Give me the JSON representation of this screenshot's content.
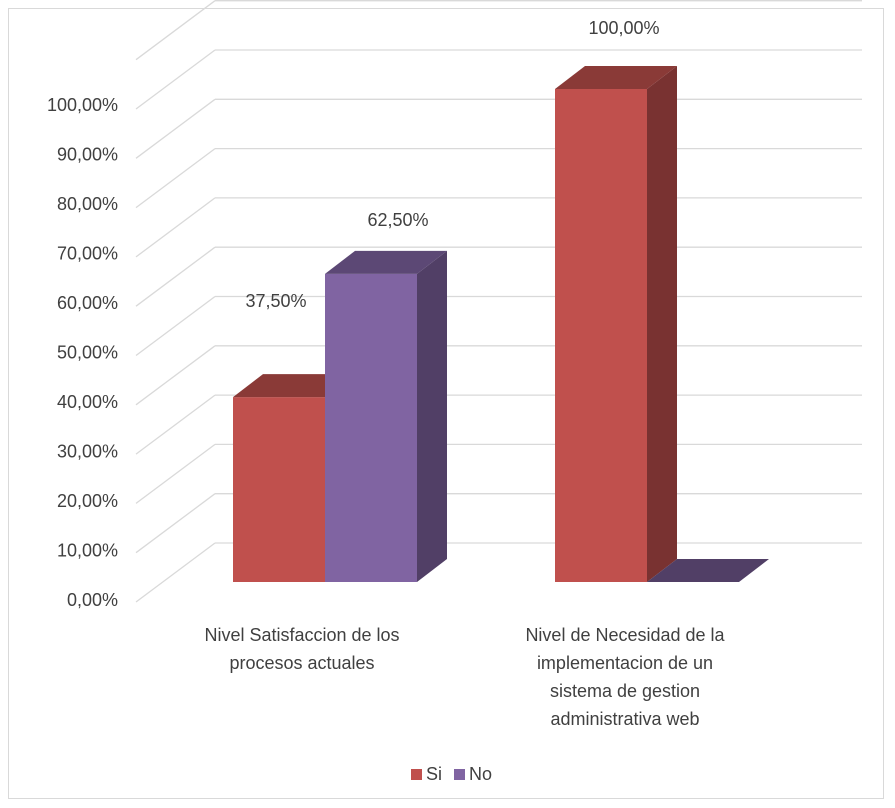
{
  "chart_data": {
    "type": "bar",
    "style": "3d-clustered-column",
    "categories": [
      [
        "Nivel Satisfaccion de los",
        "procesos actuales"
      ],
      [
        "Nivel de Necesidad de la",
        "implementacion de un",
        "sistema de gestion",
        "administrativa web"
      ]
    ],
    "series": [
      {
        "name": "Si",
        "values": [
          37.5,
          100
        ],
        "color": "#C0504D",
        "labels": [
          "37,50%",
          "100,00%"
        ]
      },
      {
        "name": "No",
        "values": [
          62.5,
          0
        ],
        "color": "#8064A2",
        "labels": [
          "62,50%",
          ""
        ]
      }
    ],
    "y_ticks": [
      "0,00%",
      "10,00%",
      "20,00%",
      "30,00%",
      "40,00%",
      "50,00%",
      "60,00%",
      "70,00%",
      "80,00%",
      "90,00%",
      "100,00%"
    ],
    "ylim": [
      0,
      110
    ],
    "grid": true,
    "legend_position": "bottom"
  }
}
